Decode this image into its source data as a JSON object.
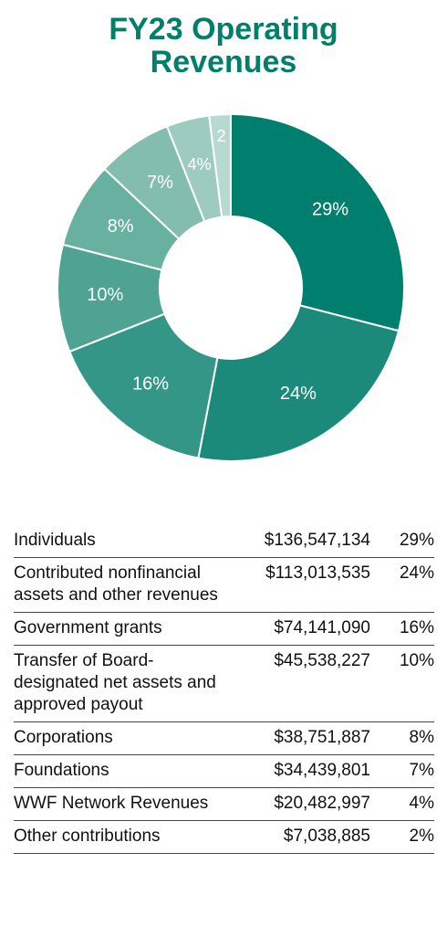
{
  "chart_data": {
    "type": "donut",
    "title": "FY23 Operating Revenues",
    "categories": [
      "Individuals",
      "Contributed nonfinancial assets and other revenues",
      "Government grants",
      "Transfer of Board-designated net assets and approved payout",
      "Corporations",
      "Foundations",
      "WWF Network Revenues",
      "Other contributions"
    ],
    "values": [
      29,
      24,
      16,
      10,
      8,
      7,
      4,
      2
    ],
    "value_labels": [
      "29%",
      "24%",
      "16%",
      "10%",
      "8%",
      "7%",
      "4%",
      "2"
    ],
    "colors": [
      "#007f6e",
      "#1b8a7a",
      "#349686",
      "#4fa393",
      "#68b0a0",
      "#82bdaf",
      "#9dcbc0",
      "#b6d9d0"
    ]
  },
  "table": {
    "rows": [
      [
        "$136,547,134",
        "29%"
      ],
      [
        "$113,013,535",
        "24%"
      ],
      [
        "$74,141,090",
        "16%"
      ],
      [
        "$45,538,227",
        "10%"
      ],
      [
        "$38,751,887",
        "8%"
      ],
      [
        "$34,439,801",
        "7%"
      ],
      [
        "$20,482,997",
        "4%"
      ],
      [
        "$7,038,885",
        "2%"
      ]
    ]
  }
}
